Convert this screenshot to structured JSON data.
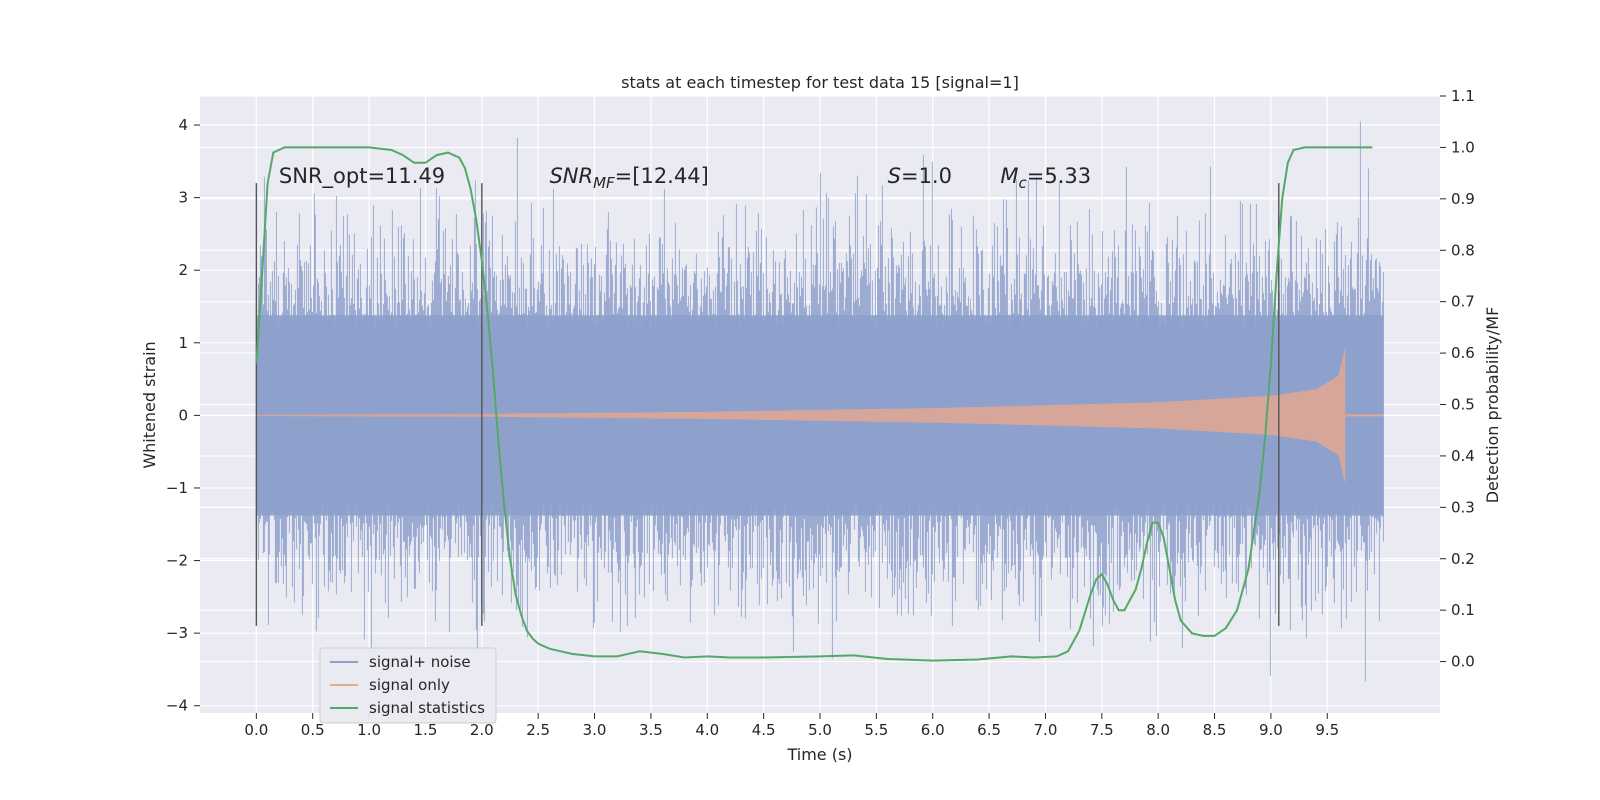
{
  "chart_data": {
    "type": "line",
    "title": "stats at each timestep for test data 15 [signal=1]",
    "xlabel": "Time (s)",
    "ylabel": "Whitened strain",
    "y2label": "Detection probability/MF",
    "xlim": [
      -0.5,
      10.5
    ],
    "ylim": [
      -4.1,
      4.4
    ],
    "y2lim": [
      -0.1,
      1.1
    ],
    "xticks": [
      "0.0",
      "0.5",
      "1.0",
      "1.5",
      "2.0",
      "2.5",
      "3.0",
      "3.5",
      "4.0",
      "4.5",
      "5.0",
      "5.5",
      "6.0",
      "6.5",
      "7.0",
      "7.5",
      "8.0",
      "8.5",
      "9.0",
      "9.5"
    ],
    "yticks": [
      "4",
      "3",
      "2",
      "1",
      "0",
      "−1",
      "−2",
      "−3",
      "−4"
    ],
    "y2ticks": [
      "1.1",
      "1.0",
      "0.9",
      "0.8",
      "0.7",
      "0.6",
      "0.5",
      "0.4",
      "0.3",
      "0.2",
      "0.1",
      "0.0"
    ],
    "grid": true,
    "legend_position": "lower-left",
    "annotations": [
      {
        "text": "SNR_opt=11.49",
        "x": 0.2,
        "y": 3.2
      },
      {
        "text": "SNR_MF=[12.44]",
        "x": 2.6,
        "y": 3.2
      },
      {
        "text": "S=1.0",
        "x": 5.6,
        "y": 3.2
      },
      {
        "text": "M_c=5.33",
        "x": 6.6,
        "y": 3.2
      }
    ],
    "vlines": [
      0.0,
      2.0,
      9.07
    ],
    "vline_range": [
      -2.9,
      3.2
    ],
    "series": [
      {
        "name": "signal+ noise",
        "color": "#8da0cb",
        "x_range": [
          0.0,
          10.0
        ],
        "core_amplitude": 1.38,
        "min": -3.7,
        "max": 4.05
      },
      {
        "name": "signal only",
        "color": "#e3a792",
        "x_range": [
          0.0,
          9.66
        ],
        "envelope": [
          [
            0.0,
            0.01
          ],
          [
            2.0,
            0.02
          ],
          [
            4.0,
            0.05
          ],
          [
            6.0,
            0.1
          ],
          [
            8.0,
            0.18
          ],
          [
            9.0,
            0.27
          ],
          [
            9.4,
            0.36
          ],
          [
            9.6,
            0.55
          ],
          [
            9.66,
            0.95
          ]
        ]
      },
      {
        "name": "signal statistics",
        "color": "#55a868",
        "axis": "right",
        "x": [
          0.0,
          0.05,
          0.1,
          0.15,
          0.25,
          0.4,
          0.6,
          0.8,
          1.0,
          1.2,
          1.3,
          1.4,
          1.5,
          1.6,
          1.7,
          1.8,
          1.85,
          1.9,
          1.95,
          2.0,
          2.05,
          2.1,
          2.15,
          2.2,
          2.25,
          2.3,
          2.35,
          2.4,
          2.45,
          2.5,
          2.55,
          2.6,
          2.7,
          2.8,
          3.0,
          3.2,
          3.4,
          3.6,
          3.8,
          4.0,
          4.2,
          4.5,
          5.0,
          5.3,
          5.6,
          6.0,
          6.4,
          6.7,
          6.9,
          7.1,
          7.2,
          7.3,
          7.4,
          7.45,
          7.5,
          7.55,
          7.6,
          7.65,
          7.7,
          7.75,
          7.8,
          7.85,
          7.9,
          7.95,
          8.0,
          8.05,
          8.1,
          8.15,
          8.2,
          8.3,
          8.4,
          8.5,
          8.6,
          8.7,
          8.8,
          8.9,
          8.95,
          9.0,
          9.05,
          9.1,
          9.15,
          9.2,
          9.3,
          9.5,
          9.7,
          9.9
        ],
        "values": [
          0.58,
          0.75,
          0.93,
          0.99,
          1.0,
          1.0,
          1.0,
          1.0,
          1.0,
          0.995,
          0.985,
          0.97,
          0.97,
          0.985,
          0.99,
          0.98,
          0.96,
          0.92,
          0.86,
          0.78,
          0.68,
          0.56,
          0.42,
          0.3,
          0.2,
          0.13,
          0.09,
          0.06,
          0.045,
          0.035,
          0.03,
          0.025,
          0.02,
          0.015,
          0.01,
          0.01,
          0.02,
          0.015,
          0.008,
          0.01,
          0.008,
          0.008,
          0.01,
          0.012,
          0.005,
          0.002,
          0.004,
          0.01,
          0.008,
          0.01,
          0.02,
          0.06,
          0.13,
          0.16,
          0.17,
          0.15,
          0.12,
          0.1,
          0.1,
          0.12,
          0.14,
          0.18,
          0.23,
          0.27,
          0.27,
          0.24,
          0.18,
          0.12,
          0.08,
          0.055,
          0.05,
          0.05,
          0.065,
          0.1,
          0.18,
          0.33,
          0.44,
          0.58,
          0.75,
          0.9,
          0.97,
          0.995,
          1.0,
          1.0,
          1.0,
          1.0
        ]
      }
    ]
  }
}
